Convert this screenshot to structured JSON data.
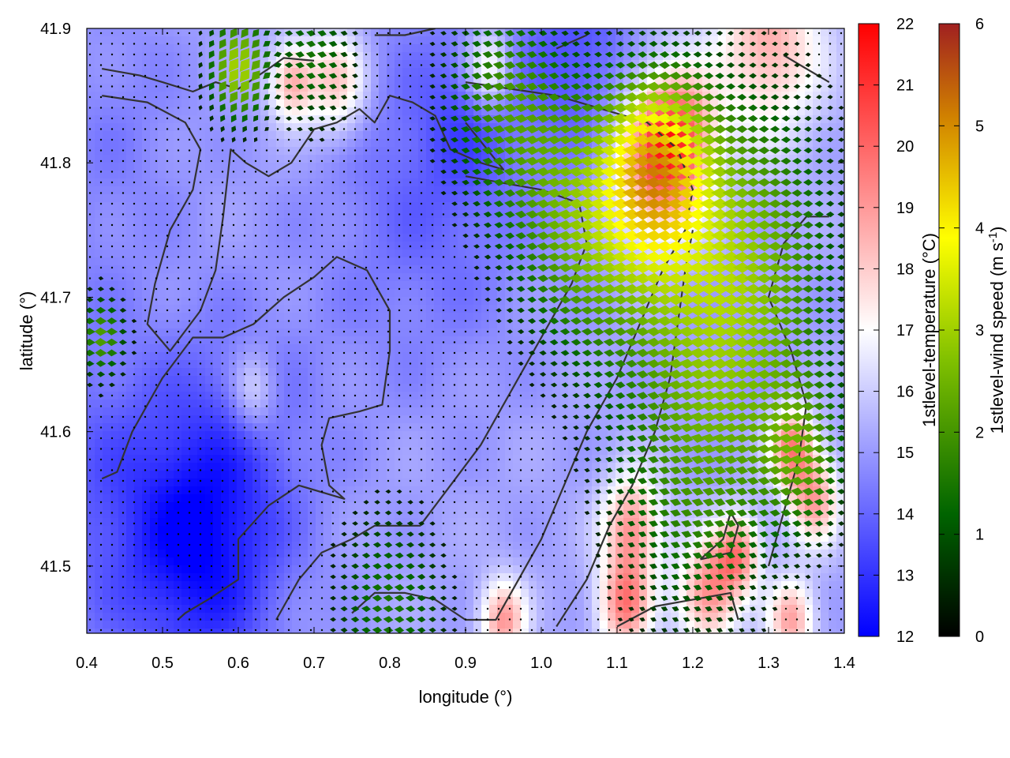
{
  "chart_data": {
    "type": "heatmap",
    "subtype": "temperature field with wind vectors and coastline overlay",
    "xlabel": "longitude (°)",
    "ylabel": "latitude (°)",
    "xlim": [
      0.4,
      1.4
    ],
    "ylim": [
      41.45,
      41.9
    ],
    "x_ticks": [
      "0.4",
      "0.5",
      "0.6",
      "0.7",
      "0.8",
      "0.9",
      "1.0",
      "1.1",
      "1.2",
      "1.3",
      "1.4"
    ],
    "y_ticks": [
      "41.5",
      "41.6",
      "41.7",
      "41.8",
      "41.9"
    ],
    "grid": false,
    "colorbar_temperature": {
      "label": "1stlevel-temperature (°C)",
      "range": [
        12,
        22
      ],
      "ticks": [
        "12",
        "13",
        "14",
        "15",
        "16",
        "17",
        "18",
        "19",
        "20",
        "21",
        "22"
      ],
      "colors": [
        "#0000ff",
        "#ffffff",
        "#ff0000"
      ]
    },
    "colorbar_wind": {
      "label_main": "1stlevel-wind speed (m s",
      "label_sup": "-1",
      "label_end": ")",
      "range": [
        0,
        6
      ],
      "ticks": [
        "0",
        "1",
        "2",
        "3",
        "4",
        "5",
        "6"
      ],
      "colors": [
        "#000000",
        "#006400",
        "#80c000",
        "#ffff00",
        "#d08000",
        "#a02020"
      ]
    },
    "temperature_features": [
      {
        "lon": 0.55,
        "lat": 41.51,
        "t": 12.8,
        "r": 0.1
      },
      {
        "lon": 0.42,
        "lat": 41.55,
        "t": 14.0,
        "r": 0.12
      },
      {
        "lon": 0.6,
        "lat": 41.58,
        "t": 14.2,
        "r": 0.12
      },
      {
        "lon": 0.85,
        "lat": 41.78,
        "t": 14.0,
        "r": 0.14
      },
      {
        "lon": 1.05,
        "lat": 41.88,
        "t": 13.6,
        "r": 0.08
      },
      {
        "lon": 0.9,
        "lat": 41.83,
        "t": 14.3,
        "r": 0.06
      },
      {
        "lon": 0.45,
        "lat": 41.83,
        "t": 14.6,
        "r": 0.1
      },
      {
        "lon": 0.35,
        "lat": 41.72,
        "t": 14.8,
        "r": 0.1
      },
      {
        "lon": 1.15,
        "lat": 41.8,
        "t": 18.8,
        "r": 0.06
      },
      {
        "lon": 1.18,
        "lat": 41.82,
        "t": 19.0,
        "r": 0.05
      },
      {
        "lon": 1.3,
        "lat": 41.89,
        "t": 18.6,
        "r": 0.07
      },
      {
        "lon": 0.73,
        "lat": 41.86,
        "t": 18.3,
        "r": 0.04
      },
      {
        "lon": 0.67,
        "lat": 41.86,
        "t": 18.6,
        "r": 0.03
      },
      {
        "lon": 0.93,
        "lat": 41.87,
        "t": 18.0,
        "r": 0.03
      },
      {
        "lon": 1.33,
        "lat": 41.59,
        "t": 19.2,
        "r": 0.03
      },
      {
        "lon": 1.36,
        "lat": 41.55,
        "t": 18.8,
        "r": 0.035
      },
      {
        "lon": 1.12,
        "lat": 41.53,
        "t": 19.0,
        "r": 0.04
      },
      {
        "lon": 1.22,
        "lat": 41.48,
        "t": 19.2,
        "r": 0.04
      },
      {
        "lon": 1.26,
        "lat": 41.51,
        "t": 19.0,
        "r": 0.03
      },
      {
        "lon": 1.11,
        "lat": 41.47,
        "t": 19.3,
        "r": 0.035
      },
      {
        "lon": 0.95,
        "lat": 41.46,
        "t": 19.0,
        "r": 0.03
      },
      {
        "lon": 1.33,
        "lat": 41.46,
        "t": 18.8,
        "r": 0.03
      },
      {
        "lon": 1.25,
        "lat": 41.75,
        "t": 15.3,
        "r": 0.06
      },
      {
        "lon": 1.28,
        "lat": 41.66,
        "t": 15.0,
        "r": 0.05
      },
      {
        "lon": 0.85,
        "lat": 41.58,
        "t": 15.2,
        "r": 0.08
      },
      {
        "lon": 0.62,
        "lat": 41.63,
        "t": 17.0,
        "r": 0.03
      }
    ],
    "wind_features": [
      {
        "lon": 1.25,
        "lat": 41.72,
        "u": -3.0,
        "v": 0.1,
        "r": 0.14
      },
      {
        "lon": 1.15,
        "lat": 41.8,
        "u": -3.2,
        "v": 0.4,
        "r": 0.07
      },
      {
        "lon": 1.05,
        "lat": 41.75,
        "u": -2.2,
        "v": 0.3,
        "r": 0.1
      },
      {
        "lon": 0.95,
        "lat": 41.85,
        "u": -1.8,
        "v": 0.4,
        "r": 0.09
      },
      {
        "lon": 0.6,
        "lat": 41.87,
        "u": -1.8,
        "v": -2.5,
        "r": 0.04
      },
      {
        "lon": 0.7,
        "lat": 41.88,
        "u": -1.5,
        "v": 0.4,
        "r": 0.06
      },
      {
        "lon": 0.42,
        "lat": 41.67,
        "u": 2.0,
        "v": 0,
        "r": 0.03
      },
      {
        "lon": 0.8,
        "lat": 41.47,
        "u": -1.6,
        "v": 0.2,
        "r": 0.08
      },
      {
        "lon": 1.2,
        "lat": 41.55,
        "u": -1.4,
        "v": 0.6,
        "r": 0.12
      },
      {
        "lon": 1.35,
        "lat": 41.58,
        "u": -1.5,
        "v": 0.2,
        "r": 0.06
      }
    ],
    "coastline": [
      [
        [
          0.42,
          41.87
        ],
        [
          0.47,
          41.865
        ],
        [
          0.5,
          41.86
        ],
        [
          0.54,
          41.853
        ],
        [
          0.57,
          41.86
        ],
        [
          0.6,
          41.855
        ],
        [
          0.64,
          41.87
        ],
        [
          0.66,
          41.878
        ],
        [
          0.7,
          41.876
        ]
      ],
      [
        [
          0.42,
          41.85
        ],
        [
          0.48,
          41.845
        ],
        [
          0.53,
          41.83
        ],
        [
          0.55,
          41.81
        ],
        [
          0.54,
          41.78
        ],
        [
          0.51,
          41.75
        ],
        [
          0.49,
          41.71
        ],
        [
          0.48,
          41.68
        ],
        [
          0.51,
          41.66
        ],
        [
          0.55,
          41.69
        ],
        [
          0.57,
          41.72
        ],
        [
          0.58,
          41.76
        ],
        [
          0.59,
          41.81
        ],
        [
          0.61,
          41.8
        ],
        [
          0.64,
          41.79
        ],
        [
          0.67,
          41.8
        ],
        [
          0.7,
          41.825
        ],
        [
          0.73,
          41.83
        ],
        [
          0.76,
          41.84
        ],
        [
          0.78,
          41.83
        ],
        [
          0.8,
          41.85
        ],
        [
          0.83,
          41.845
        ],
        [
          0.86,
          41.835
        ],
        [
          0.88,
          41.81
        ],
        [
          0.92,
          41.8
        ],
        [
          0.95,
          41.795
        ],
        [
          0.9,
          41.83
        ]
      ],
      [
        [
          0.42,
          41.565
        ],
        [
          0.44,
          41.57
        ],
        [
          0.46,
          41.6
        ],
        [
          0.5,
          41.64
        ],
        [
          0.54,
          41.67
        ],
        [
          0.58,
          41.67
        ],
        [
          0.62,
          41.68
        ],
        [
          0.66,
          41.7
        ],
        [
          0.7,
          41.715
        ],
        [
          0.73,
          41.73
        ],
        [
          0.77,
          41.72
        ],
        [
          0.8,
          41.69
        ],
        [
          0.8,
          41.66
        ],
        [
          0.79,
          41.62
        ],
        [
          0.76,
          41.615
        ],
        [
          0.72,
          41.61
        ],
        [
          0.71,
          41.59
        ],
        [
          0.72,
          41.56
        ],
        [
          0.74,
          41.55
        ],
        [
          0.68,
          41.56
        ],
        [
          0.64,
          41.545
        ],
        [
          0.6,
          41.52
        ],
        [
          0.6,
          41.49
        ],
        [
          0.56,
          41.475
        ],
        [
          0.53,
          41.465
        ],
        [
          0.52,
          41.46
        ]
      ],
      [
        [
          0.65,
          41.46
        ],
        [
          0.68,
          41.49
        ],
        [
          0.71,
          41.51
        ],
        [
          0.75,
          41.52
        ],
        [
          0.78,
          41.53
        ],
        [
          0.84,
          41.53
        ],
        [
          0.88,
          41.56
        ],
        [
          0.92,
          41.59
        ],
        [
          0.95,
          41.62
        ],
        [
          0.98,
          41.65
        ],
        [
          1.01,
          41.68
        ],
        [
          1.04,
          41.71
        ],
        [
          1.06,
          41.74
        ],
        [
          1.05,
          41.77
        ],
        [
          1.0,
          41.78
        ],
        [
          0.95,
          41.785
        ],
        [
          0.9,
          41.79
        ]
      ],
      [
        [
          0.75,
          41.465
        ],
        [
          0.78,
          41.48
        ],
        [
          0.82,
          41.48
        ],
        [
          0.86,
          41.475
        ],
        [
          0.9,
          41.46
        ],
        [
          0.94,
          41.46
        ],
        [
          0.97,
          41.49
        ],
        [
          1.0,
          41.52
        ],
        [
          1.03,
          41.56
        ],
        [
          1.06,
          41.6
        ],
        [
          1.1,
          41.64
        ],
        [
          1.13,
          41.68
        ],
        [
          1.16,
          41.72
        ],
        [
          1.19,
          41.75
        ],
        [
          1.2,
          41.78
        ],
        [
          1.18,
          41.81
        ],
        [
          1.14,
          41.83
        ],
        [
          1.08,
          41.84
        ],
        [
          1.02,
          41.85
        ],
        [
          0.96,
          41.855
        ],
        [
          0.9,
          41.86
        ]
      ],
      [
        [
          1.02,
          41.455
        ],
        [
          1.06,
          41.49
        ],
        [
          1.09,
          41.53
        ],
        [
          1.12,
          41.56
        ],
        [
          1.15,
          41.6
        ],
        [
          1.17,
          41.64
        ],
        [
          1.18,
          41.68
        ],
        [
          1.19,
          41.72
        ],
        [
          1.2,
          41.75
        ]
      ],
      [
        [
          1.1,
          41.455
        ],
        [
          1.15,
          41.47
        ],
        [
          1.2,
          41.475
        ],
        [
          1.25,
          41.48
        ],
        [
          1.26,
          41.46
        ]
      ],
      [
        [
          1.21,
          41.505
        ],
        [
          1.25,
          41.51
        ],
        [
          1.26,
          41.53
        ],
        [
          1.25,
          41.54
        ],
        [
          1.24,
          41.52
        ],
        [
          1.21,
          41.505
        ]
      ],
      [
        [
          1.3,
          41.5
        ],
        [
          1.32,
          41.54
        ],
        [
          1.34,
          41.58
        ],
        [
          1.35,
          41.62
        ],
        [
          1.33,
          41.66
        ],
        [
          1.3,
          41.7
        ],
        [
          1.32,
          41.74
        ],
        [
          1.35,
          41.76
        ],
        [
          1.38,
          41.76
        ]
      ],
      [
        [
          1.32,
          41.88
        ],
        [
          1.35,
          41.87
        ],
        [
          1.38,
          41.86
        ]
      ],
      [
        [
          0.78,
          41.895
        ],
        [
          0.82,
          41.895
        ],
        [
          0.86,
          41.9
        ]
      ],
      [
        [
          1.02,
          41.885
        ],
        [
          1.06,
          41.895
        ]
      ]
    ]
  }
}
